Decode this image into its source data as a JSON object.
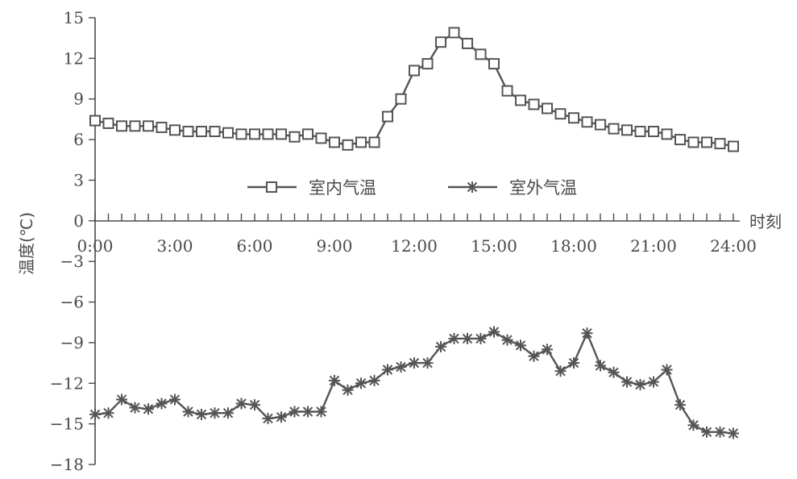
{
  "chart_data": {
    "type": "line",
    "xlabel": "时刻",
    "ylabel": "温度(℃)",
    "x_ticks": [
      "0:00",
      "3:00",
      "6:00",
      "9:00",
      "12:00",
      "15:00",
      "18:00",
      "21:00",
      "24:00"
    ],
    "y_ticks": [
      "15",
      "12",
      "9",
      "6",
      "3",
      "0",
      "-3",
      "-6",
      "-9",
      "-12",
      "-15",
      "-18"
    ],
    "ylim": [
      -18,
      15
    ],
    "xlim_hours": [
      0,
      24
    ],
    "legend_position": "upper-middle",
    "grid": false,
    "x_hours": [
      0,
      0.5,
      1,
      1.5,
      2,
      2.5,
      3,
      3.5,
      4,
      4.5,
      5,
      5.5,
      6,
      6.5,
      7,
      7.5,
      8,
      8.5,
      9,
      9.5,
      10,
      10.5,
      11,
      11.5,
      12,
      12.5,
      13,
      13.5,
      14,
      14.5,
      15,
      15.5,
      16,
      16.5,
      17,
      17.5,
      18,
      18.5,
      19,
      19.5,
      20,
      20.5,
      21,
      21.5,
      22,
      22.5,
      23,
      23.5,
      24
    ],
    "series": [
      {
        "name": "室内气温",
        "marker": "square",
        "values": [
          7.4,
          7.2,
          7.0,
          7.0,
          7.0,
          6.9,
          6.7,
          6.6,
          6.6,
          6.6,
          6.5,
          6.4,
          6.4,
          6.4,
          6.4,
          6.2,
          6.4,
          6.1,
          5.8,
          5.6,
          5.8,
          5.8,
          7.7,
          9.0,
          11.1,
          11.6,
          13.2,
          13.9,
          13.1,
          12.3,
          11.6,
          9.6,
          8.9,
          8.6,
          8.3,
          7.9,
          7.6,
          7.3,
          7.1,
          6.8,
          6.7,
          6.6,
          6.6,
          6.4,
          6.0,
          5.8,
          5.8,
          5.7,
          5.5
        ]
      },
      {
        "name": "室外气温",
        "marker": "star",
        "values": [
          -14.3,
          -14.2,
          -13.2,
          -13.8,
          -13.9,
          -13.5,
          -13.2,
          -14.1,
          -14.3,
          -14.2,
          -14.2,
          -13.5,
          -13.6,
          -14.6,
          -14.5,
          -14.1,
          -14.1,
          -14.1,
          -11.8,
          -12.5,
          -12.0,
          -11.8,
          -11.0,
          -10.8,
          -10.5,
          -10.5,
          -9.3,
          -8.7,
          -8.7,
          -8.7,
          -8.2,
          -8.8,
          -9.2,
          -10.0,
          -9.5,
          -11.1,
          -10.5,
          -8.3,
          -10.7,
          -11.2,
          -11.9,
          -12.1,
          -11.9,
          -11.0,
          -13.6,
          -15.1,
          -15.6,
          -15.6,
          -15.7
        ]
      }
    ]
  }
}
